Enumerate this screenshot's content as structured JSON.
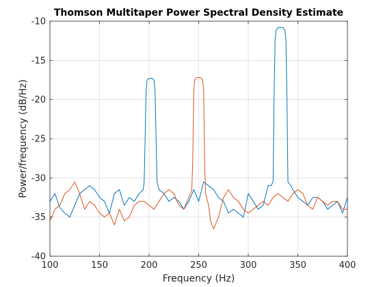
{
  "chart_data": {
    "type": "line",
    "title": "Thomson Multitaper Power Spectral Density Estimate",
    "xlabel": "Frequency (Hz)",
    "ylabel": "Power/frequency (dB/Hz)",
    "xlim": [
      100,
      400
    ],
    "ylim": [
      -40,
      -10
    ],
    "xticks": [
      "100",
      "150",
      "200",
      "250",
      "300",
      "350",
      "400"
    ],
    "yticks": [
      "-40",
      "-35",
      "-30",
      "-25",
      "-20",
      "-15",
      "-10"
    ],
    "grid": true,
    "legend": "none",
    "series": [
      {
        "color": "#0072BD",
        "points": [
          [
            100,
            -33.0
          ],
          [
            105,
            -32.0
          ],
          [
            110,
            -33.8
          ],
          [
            115,
            -34.5
          ],
          [
            120,
            -35.0
          ],
          [
            125,
            -33.5
          ],
          [
            130,
            -32.0
          ],
          [
            135,
            -31.5
          ],
          [
            140,
            -31.0
          ],
          [
            145,
            -31.5
          ],
          [
            150,
            -32.5
          ],
          [
            155,
            -33.0
          ],
          [
            160,
            -34.5
          ],
          [
            165,
            -32.0
          ],
          [
            170,
            -31.5
          ],
          [
            175,
            -33.5
          ],
          [
            180,
            -32.5
          ],
          [
            185,
            -33.0
          ],
          [
            190,
            -32.0
          ],
          [
            194,
            -31.5
          ],
          [
            195,
            -30.5
          ],
          [
            196,
            -25.0
          ],
          [
            197,
            -19.0
          ],
          [
            198,
            -17.5
          ],
          [
            200,
            -17.3
          ],
          [
            203,
            -17.3
          ],
          [
            205,
            -17.5
          ],
          [
            206,
            -19.0
          ],
          [
            207,
            -25.0
          ],
          [
            208,
            -30.5
          ],
          [
            210,
            -31.5
          ],
          [
            215,
            -32.0
          ],
          [
            220,
            -33.0
          ],
          [
            225,
            -32.5
          ],
          [
            230,
            -33.0
          ],
          [
            235,
            -34.0
          ],
          [
            240,
            -33.0
          ],
          [
            245,
            -31.5
          ],
          [
            250,
            -33.0
          ],
          [
            255,
            -30.5
          ],
          [
            260,
            -31.0
          ],
          [
            265,
            -31.5
          ],
          [
            270,
            -32.5
          ],
          [
            275,
            -33.0
          ],
          [
            280,
            -34.5
          ],
          [
            285,
            -34.0
          ],
          [
            290,
            -34.5
          ],
          [
            295,
            -35.0
          ],
          [
            300,
            -32.0
          ],
          [
            305,
            -33.0
          ],
          [
            310,
            -34.0
          ],
          [
            315,
            -33.5
          ],
          [
            320,
            -31.0
          ],
          [
            323,
            -31.0
          ],
          [
            325,
            -30.5
          ],
          [
            326,
            -20.0
          ],
          [
            327,
            -12.5
          ],
          [
            328,
            -11.2
          ],
          [
            330,
            -10.8
          ],
          [
            335,
            -10.8
          ],
          [
            337,
            -11.2
          ],
          [
            338,
            -12.5
          ],
          [
            339,
            -20.0
          ],
          [
            340,
            -30.5
          ],
          [
            343,
            -31.0
          ],
          [
            345,
            -31.5
          ],
          [
            350,
            -32.5
          ],
          [
            355,
            -33.0
          ],
          [
            360,
            -33.5
          ],
          [
            365,
            -32.5
          ],
          [
            370,
            -32.5
          ],
          [
            375,
            -33.0
          ],
          [
            380,
            -34.0
          ],
          [
            385,
            -33.5
          ],
          [
            390,
            -33.0
          ],
          [
            395,
            -34.5
          ],
          [
            400,
            -32.5
          ]
        ]
      },
      {
        "color": "#D95319",
        "points": [
          [
            100,
            -35.5
          ],
          [
            105,
            -34.0
          ],
          [
            110,
            -33.5
          ],
          [
            115,
            -32.0
          ],
          [
            120,
            -31.5
          ],
          [
            125,
            -30.5
          ],
          [
            130,
            -32.0
          ],
          [
            135,
            -34.0
          ],
          [
            140,
            -33.0
          ],
          [
            145,
            -33.5
          ],
          [
            150,
            -34.5
          ],
          [
            155,
            -35.0
          ],
          [
            160,
            -34.5
          ],
          [
            165,
            -36.0
          ],
          [
            170,
            -34.0
          ],
          [
            175,
            -35.5
          ],
          [
            180,
            -35.0
          ],
          [
            185,
            -33.5
          ],
          [
            190,
            -33.0
          ],
          [
            195,
            -33.0
          ],
          [
            200,
            -33.5
          ],
          [
            205,
            -34.0
          ],
          [
            210,
            -33.0
          ],
          [
            215,
            -32.0
          ],
          [
            220,
            -31.5
          ],
          [
            225,
            -32.0
          ],
          [
            230,
            -33.5
          ],
          [
            235,
            -34.0
          ],
          [
            240,
            -32.5
          ],
          [
            243,
            -31.5
          ],
          [
            244,
            -28.0
          ],
          [
            245,
            -19.0
          ],
          [
            246,
            -17.5
          ],
          [
            248,
            -17.2
          ],
          [
            252,
            -17.2
          ],
          [
            254,
            -17.5
          ],
          [
            255,
            -19.0
          ],
          [
            256,
            -28.0
          ],
          [
            257,
            -32.0
          ],
          [
            260,
            -33.5
          ],
          [
            262,
            -35.5
          ],
          [
            265,
            -36.5
          ],
          [
            270,
            -35.0
          ],
          [
            275,
            -32.5
          ],
          [
            280,
            -31.5
          ],
          [
            285,
            -32.5
          ],
          [
            290,
            -33.0
          ],
          [
            295,
            -34.0
          ],
          [
            300,
            -34.5
          ],
          [
            305,
            -34.0
          ],
          [
            310,
            -33.5
          ],
          [
            315,
            -33.0
          ],
          [
            320,
            -33.5
          ],
          [
            325,
            -32.5
          ],
          [
            330,
            -32.0
          ],
          [
            335,
            -32.5
          ],
          [
            340,
            -33.0
          ],
          [
            345,
            -32.0
          ],
          [
            350,
            -31.5
          ],
          [
            355,
            -32.0
          ],
          [
            360,
            -33.5
          ],
          [
            365,
            -34.0
          ],
          [
            370,
            -32.5
          ],
          [
            375,
            -33.0
          ],
          [
            380,
            -33.5
          ],
          [
            385,
            -33.0
          ],
          [
            390,
            -33.0
          ],
          [
            395,
            -34.0
          ],
          [
            400,
            -34.0
          ]
        ]
      }
    ]
  }
}
